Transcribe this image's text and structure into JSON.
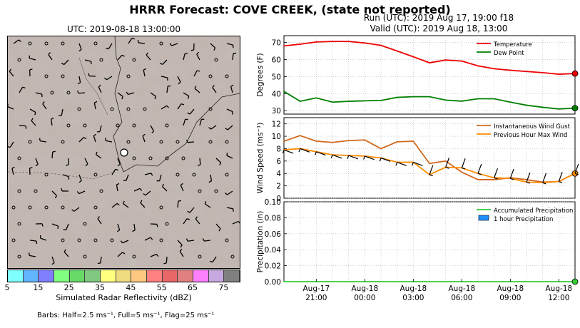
{
  "title": "HRRR Forecast: COVE CREEK, (state not reported)",
  "map": {
    "title": "UTC: 2019-08-18 13:00:00",
    "colorbar_label": "Simulated Radar Reflectivity (dBZ)",
    "colorbar_ticks": [
      "5",
      "15",
      "25",
      "35",
      "45",
      "55",
      "65",
      "75"
    ],
    "colorbar_colors": [
      "#80ffff",
      "#61b6ff",
      "#8080ff",
      "#80ff80",
      "#66d966",
      "#80c880",
      "#ffff80",
      "#f0dc80",
      "#ffc880",
      "#ff8080",
      "#e86868",
      "#e08080",
      "#ff80ff",
      "#c8a8e0",
      "#808080"
    ],
    "barbs_caption": "Barbs: Half=2.5 ms⁻¹, Full=5 ms⁻¹, Flag=25 ms⁻¹"
  },
  "run_info": {
    "run": "Run (UTC): 2019 Aug 17, 19:00 f18",
    "valid": "Valid (UTC): 2019 Aug 18, 13:00"
  },
  "chart_data": [
    {
      "type": "line",
      "ylabel": "Degrees (F)",
      "ylim": [
        28,
        74
      ],
      "yticks": [
        30,
        40,
        50,
        60,
        70
      ],
      "xlim": [
        0,
        18
      ],
      "grid": true,
      "legend": "top-right",
      "series": [
        {
          "name": "Temperature",
          "color": "#ee0000",
          "x": [
            0,
            1,
            2,
            3,
            4,
            5,
            6,
            7,
            8,
            9,
            10,
            11,
            12,
            13,
            14,
            15,
            16,
            17,
            18
          ],
          "values": [
            68,
            69,
            70.3,
            70.6,
            70.6,
            69.7,
            68.3,
            65,
            61.6,
            58.1,
            59.7,
            59.1,
            56.3,
            54.6,
            53.7,
            53,
            52.3,
            51.4,
            51.8
          ]
        },
        {
          "name": "Dew Point",
          "color": "#008000",
          "x": [
            0,
            1,
            2,
            3,
            4,
            5,
            6,
            7,
            8,
            9,
            10,
            11,
            12,
            13,
            14,
            15,
            16,
            17,
            18
          ],
          "values": [
            41.3,
            35.5,
            37.5,
            35,
            35.5,
            35.8,
            36,
            37.8,
            38.2,
            38.2,
            36.2,
            35.6,
            37,
            37,
            35,
            33.2,
            32,
            31,
            31.5
          ]
        }
      ]
    },
    {
      "type": "line",
      "ylabel": "Wind Speed (ms⁻¹)",
      "ylim": [
        0,
        13
      ],
      "yticks": [
        0,
        2,
        4,
        6,
        8,
        10,
        12
      ],
      "xlim": [
        0,
        18
      ],
      "grid": true,
      "legend": "top-right",
      "series": [
        {
          "name": "Instantaneous Wind Gust",
          "color": "#d2691e",
          "x": [
            0,
            1,
            2,
            3,
            4,
            5,
            6,
            7,
            8,
            9,
            10,
            11,
            12,
            13,
            14,
            15,
            16,
            17,
            18
          ],
          "values": [
            9.2,
            10.1,
            9.2,
            9,
            9.3,
            9.4,
            8,
            9.1,
            9.2,
            5.6,
            6,
            4.2,
            3,
            3,
            3.3,
            3,
            2.6,
            2.7,
            4
          ]
        },
        {
          "name": "Previous Hour Max Wind",
          "color": "#ff8c00",
          "x": [
            0,
            1,
            2,
            3,
            4,
            5,
            6,
            7,
            8,
            9,
            10,
            11,
            12,
            13,
            14,
            15,
            16,
            17,
            18
          ],
          "values": [
            7.8,
            8,
            7.5,
            7,
            6.9,
            6.8,
            6.5,
            5.8,
            5.8,
            3.8,
            5,
            4.9,
            4,
            3.3,
            3.2,
            2.6,
            2.5,
            2.7,
            4
          ]
        }
      ]
    },
    {
      "type": "line",
      "ylabel": "Precipitation (in)",
      "ylim": [
        0,
        0.1
      ],
      "yticks": [
        "0.00",
        "0.02",
        "0.04",
        "0.06",
        "0.08",
        "0.10"
      ],
      "xlim": [
        0,
        18
      ],
      "grid": true,
      "legend": "top-right",
      "series": [
        {
          "name": "Accumulated Precipitation",
          "color": "#32cd32",
          "x": [
            0,
            1,
            2,
            3,
            4,
            5,
            6,
            7,
            8,
            9,
            10,
            11,
            12,
            13,
            14,
            15,
            16,
            17,
            18
          ],
          "values": [
            0,
            0,
            0,
            0,
            0,
            0,
            0,
            0,
            0,
            0,
            0,
            0,
            0,
            0,
            0,
            0,
            0,
            0,
            0
          ]
        },
        {
          "name": "1 hour Precipitation",
          "color": "#1e90ff",
          "type": "bar",
          "x": [
            0,
            1,
            2,
            3,
            4,
            5,
            6,
            7,
            8,
            9,
            10,
            11,
            12,
            13,
            14,
            15,
            16,
            17,
            18
          ],
          "values": [
            0,
            0,
            0,
            0,
            0,
            0,
            0,
            0,
            0,
            0,
            0,
            0,
            0,
            0,
            0,
            0,
            0,
            0,
            0
          ]
        }
      ],
      "xtick_labels": [
        {
          "x": 2,
          "top": "Aug-17",
          "bottom": "21:00"
        },
        {
          "x": 5,
          "top": "Aug-18",
          "bottom": "00:00"
        },
        {
          "x": 8,
          "top": "Aug-18",
          "bottom": "03:00"
        },
        {
          "x": 11,
          "top": "Aug-18",
          "bottom": "06:00"
        },
        {
          "x": 14,
          "top": "Aug-18",
          "bottom": "09:00"
        },
        {
          "x": 17,
          "top": "Aug-18",
          "bottom": "12:00"
        }
      ]
    }
  ]
}
